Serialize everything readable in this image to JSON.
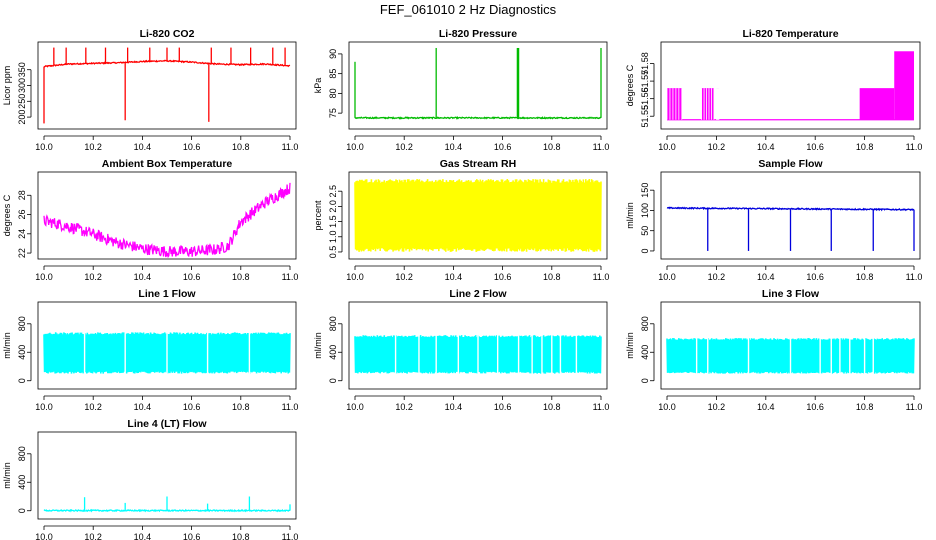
{
  "figure_title": "FEF_061010  2 Hz Diagnostics",
  "chart_data": [
    {
      "id": "co2",
      "type": "line",
      "title": "Li-820 CO2",
      "ylabel": "Licor ppm",
      "color": "#ff0000",
      "xlim": [
        10.0,
        11.0
      ],
      "ylim": [
        175,
        425
      ],
      "xticks": [
        10.0,
        10.2,
        10.4,
        10.6,
        10.8,
        11.0
      ],
      "xticklabels": [
        "10.0",
        "10.2",
        "10.4",
        "10.6",
        "10.8",
        "11.0"
      ],
      "yticks": [
        200,
        250,
        300,
        350
      ],
      "yticklabels": [
        "200",
        "250",
        "300",
        "350"
      ],
      "series": [
        {
          "name": "CO2",
          "x": [
            10.0,
            10.1,
            10.2,
            10.3,
            10.4,
            10.5,
            10.6,
            10.7,
            10.8,
            10.9,
            11.0
          ],
          "y": [
            360,
            368,
            370,
            372,
            376,
            378,
            374,
            368,
            366,
            368,
            362
          ]
        }
      ],
      "spikes": [
        {
          "x": 10.0,
          "y": 180
        },
        {
          "x": 10.04,
          "y": 420
        },
        {
          "x": 10.09,
          "y": 420
        },
        {
          "x": 10.17,
          "y": 420
        },
        {
          "x": 10.25,
          "y": 420
        },
        {
          "x": 10.33,
          "y": 190
        },
        {
          "x": 10.34,
          "y": 420
        },
        {
          "x": 10.43,
          "y": 420
        },
        {
          "x": 10.5,
          "y": 420
        },
        {
          "x": 10.55,
          "y": 420
        },
        {
          "x": 10.67,
          "y": 185
        },
        {
          "x": 10.68,
          "y": 420
        },
        {
          "x": 10.76,
          "y": 420
        },
        {
          "x": 10.84,
          "y": 420
        },
        {
          "x": 10.93,
          "y": 420
        },
        {
          "x": 10.98,
          "y": 420
        }
      ]
    },
    {
      "id": "pressure",
      "type": "line",
      "title": "Li-820 Pressure",
      "ylabel": "kPa",
      "color": "#00bb00",
      "xlim": [
        10.0,
        11.0
      ],
      "ylim": [
        72,
        92
      ],
      "xticks": [
        10.0,
        10.2,
        10.4,
        10.6,
        10.8,
        11.0
      ],
      "xticklabels": [
        "10.0",
        "10.2",
        "10.4",
        "10.6",
        "10.8",
        "11.0"
      ],
      "yticks": [
        75,
        80,
        85,
        90
      ],
      "yticklabels": [
        "75",
        "80",
        "85",
        "90"
      ],
      "series": [
        {
          "name": "Pressure",
          "x": [
            10.0,
            11.0
          ],
          "y": [
            73.8,
            73.8
          ]
        }
      ],
      "spikes": [
        {
          "x": 10.0,
          "y": 88
        },
        {
          "x": 10.33,
          "y": 91.5
        },
        {
          "x": 10.66,
          "y": 91.5
        },
        {
          "x": 10.665,
          "y": 91.5
        },
        {
          "x": 11.0,
          "y": 91.5
        }
      ]
    },
    {
      "id": "temp",
      "type": "line",
      "title": "Li-820 Temperature",
      "ylabel": "degrees C",
      "color": "#ff00ff",
      "xlim": [
        10.0,
        11.0
      ],
      "ylim": [
        51.545,
        51.59
      ],
      "xticks": [
        10.0,
        10.2,
        10.4,
        10.6,
        10.8,
        11.0
      ],
      "xticklabels": [
        "10.0",
        "10.2",
        "10.4",
        "10.6",
        "10.8",
        "11.0"
      ],
      "yticks": [
        51.55,
        51.56,
        51.57,
        51.58
      ],
      "yticklabels": [
        "51.55",
        "51.56",
        "51.57",
        "51.58"
      ],
      "series": [
        {
          "name": "Temperature",
          "x": [
            10.0,
            10.8,
            10.8,
            10.92,
            10.92,
            11.0
          ],
          "y": [
            51.548,
            51.548,
            51.566,
            51.566,
            51.587,
            51.587
          ]
        }
      ],
      "bands": [
        {
          "x0": 10.0,
          "x1": 10.06,
          "lo": 51.548,
          "hi": 51.566
        },
        {
          "x0": 10.14,
          "x1": 10.19,
          "lo": 51.548,
          "hi": 51.566
        },
        {
          "x0": 10.2,
          "x1": 10.21,
          "lo": 51.548,
          "hi": 51.566
        },
        {
          "x0": 10.78,
          "x1": 10.92,
          "lo": 51.548,
          "hi": 51.566
        },
        {
          "x0": 10.92,
          "x1": 11.0,
          "lo": 51.548,
          "hi": 51.587
        }
      ]
    },
    {
      "id": "ambient",
      "type": "line",
      "title": "Ambient Box Temperature",
      "ylabel": "degrees C",
      "color": "#ff00ff",
      "xlim": [
        10.0,
        11.0
      ],
      "ylim": [
        21.8,
        30.0
      ],
      "xticks": [
        10.0,
        10.2,
        10.4,
        10.6,
        10.8,
        11.0
      ],
      "xticklabels": [
        "10.0",
        "10.2",
        "10.4",
        "10.6",
        "10.8",
        "11.0"
      ],
      "yticks": [
        22,
        24,
        26,
        28
      ],
      "yticklabels": [
        "22",
        "24",
        "26",
        "28"
      ],
      "series": [
        {
          "name": "Ambient",
          "x": [
            10.0,
            10.1,
            10.2,
            10.3,
            10.4,
            10.5,
            10.6,
            10.7,
            10.75,
            10.8,
            10.9,
            11.0
          ],
          "y": [
            25.6,
            25.0,
            24.2,
            23.3,
            22.7,
            22.4,
            22.4,
            22.6,
            23.0,
            25.5,
            27.5,
            29.0
          ]
        }
      ],
      "noise_amplitude": 1.2
    },
    {
      "id": "rh",
      "type": "line",
      "title": "Gas Stream RH",
      "ylabel": "percent",
      "color": "#ffff00",
      "xlim": [
        10.0,
        11.0
      ],
      "ylim": [
        0.4,
        3.0
      ],
      "xticks": [
        10.0,
        10.2,
        10.4,
        10.6,
        10.8,
        11.0
      ],
      "xticklabels": [
        "10.0",
        "10.2",
        "10.4",
        "10.6",
        "10.8",
        "11.0"
      ],
      "yticks": [
        0.5,
        1.0,
        1.5,
        2.0,
        2.5
      ],
      "yticklabels": [
        "0.5",
        "1.0",
        "1.5",
        "2.0",
        "2.5"
      ],
      "series": [
        {
          "name": "RH",
          "x": [
            10.0,
            11.0
          ],
          "y": [
            0.5,
            2.9
          ]
        }
      ],
      "band": {
        "lo": 0.5,
        "hi": 2.9
      }
    },
    {
      "id": "sample",
      "type": "line",
      "title": "Sample Flow",
      "ylabel": "ml/min",
      "color": "#0000dd",
      "xlim": [
        10.0,
        11.0
      ],
      "ylim": [
        -10,
        185
      ],
      "xticks": [
        10.0,
        10.2,
        10.4,
        10.6,
        10.8,
        11.0
      ],
      "xticklabels": [
        "10.0",
        "10.2",
        "10.4",
        "10.6",
        "10.8",
        "11.0"
      ],
      "yticks": [
        0,
        50,
        100,
        150
      ],
      "yticklabels": [
        "0",
        "50",
        "100",
        "150"
      ],
      "series": [
        {
          "name": "Sample Flow",
          "x": [
            10.0,
            11.0
          ],
          "y": [
            106,
            102
          ]
        }
      ],
      "spikes": [
        {
          "x": 10.165,
          "y": 0
        },
        {
          "x": 10.33,
          "y": 0
        },
        {
          "x": 10.5,
          "y": 0
        },
        {
          "x": 10.665,
          "y": 0
        },
        {
          "x": 10.835,
          "y": 0
        },
        {
          "x": 11.0,
          "y": 0
        }
      ]
    },
    {
      "id": "line1",
      "type": "line",
      "title": "Line 1 Flow",
      "ylabel": "ml/min",
      "color": "#00ffff",
      "xlim": [
        10.0,
        11.0
      ],
      "ylim": [
        -60,
        1050
      ],
      "xticks": [
        10.0,
        10.2,
        10.4,
        10.6,
        10.8,
        11.0
      ],
      "xticklabels": [
        "10.0",
        "10.2",
        "10.4",
        "10.6",
        "10.8",
        "11.0"
      ],
      "yticks": [
        0,
        400,
        800
      ],
      "yticklabels": [
        "0",
        "400",
        "800"
      ],
      "series": [
        {
          "name": "Line 1",
          "x": [
            10.0,
            11.0
          ],
          "y": [
            100,
            680
          ]
        }
      ],
      "band": {
        "lo": 100,
        "hi": 680
      },
      "gaps": [
        10.165,
        10.33,
        10.5,
        10.665,
        10.835
      ]
    },
    {
      "id": "line2",
      "type": "line",
      "title": "Line 2 Flow",
      "ylabel": "ml/min",
      "color": "#00ffff",
      "xlim": [
        10.0,
        11.0
      ],
      "ylim": [
        -60,
        1050
      ],
      "xticks": [
        10.0,
        10.2,
        10.4,
        10.6,
        10.8,
        11.0
      ],
      "xticklabels": [
        "10.0",
        "10.2",
        "10.4",
        "10.6",
        "10.8",
        "11.0"
      ],
      "yticks": [
        0,
        400,
        800
      ],
      "yticklabels": [
        "0",
        "400",
        "800"
      ],
      "series": [
        {
          "name": "Line 2",
          "x": [
            10.0,
            11.0
          ],
          "y": [
            100,
            640
          ]
        }
      ],
      "band": {
        "lo": 100,
        "hi": 640
      },
      "gaps": [
        10.165,
        10.26,
        10.33,
        10.42,
        10.5,
        10.58,
        10.665,
        10.72,
        10.76,
        10.8,
        10.835,
        10.9
      ]
    },
    {
      "id": "line3",
      "type": "line",
      "title": "Line 3 Flow",
      "ylabel": "ml/min",
      "color": "#00ffff",
      "xlim": [
        10.0,
        11.0
      ],
      "ylim": [
        -60,
        1050
      ],
      "xticks": [
        10.0,
        10.2,
        10.4,
        10.6,
        10.8,
        11.0
      ],
      "xticklabels": [
        "10.0",
        "10.2",
        "10.4",
        "10.6",
        "10.8",
        "11.0"
      ],
      "yticks": [
        0,
        400,
        800
      ],
      "yticklabels": [
        "0",
        "400",
        "800"
      ],
      "series": [
        {
          "name": "Line 3",
          "x": [
            10.0,
            11.0
          ],
          "y": [
            100,
            600
          ]
        }
      ],
      "band": {
        "lo": 100,
        "hi": 600
      },
      "gaps": [
        10.12,
        10.165,
        10.33,
        10.5,
        10.62,
        10.665,
        10.7,
        10.74,
        10.8,
        10.835
      ]
    },
    {
      "id": "line4",
      "type": "line",
      "title": "Line 4 (LT) Flow",
      "ylabel": "ml/min",
      "color": "#00ffff",
      "xlim": [
        10.0,
        11.0
      ],
      "ylim": [
        -60,
        1050
      ],
      "xticks": [
        10.0,
        10.2,
        10.4,
        10.6,
        10.8,
        11.0
      ],
      "xticklabels": [
        "10.0",
        "10.2",
        "10.4",
        "10.6",
        "10.8",
        "11.0"
      ],
      "yticks": [
        0,
        400,
        800
      ],
      "yticklabels": [
        "0",
        "400",
        "800"
      ],
      "series": [
        {
          "name": "Line 4",
          "x": [
            10.0,
            11.0
          ],
          "y": [
            2,
            2
          ]
        }
      ],
      "spikes": [
        {
          "x": 10.165,
          "y": 190
        },
        {
          "x": 10.33,
          "y": 110
        },
        {
          "x": 10.5,
          "y": 200
        },
        {
          "x": 10.665,
          "y": 100
        },
        {
          "x": 10.835,
          "y": 200
        },
        {
          "x": 11.0,
          "y": 90
        }
      ]
    }
  ]
}
